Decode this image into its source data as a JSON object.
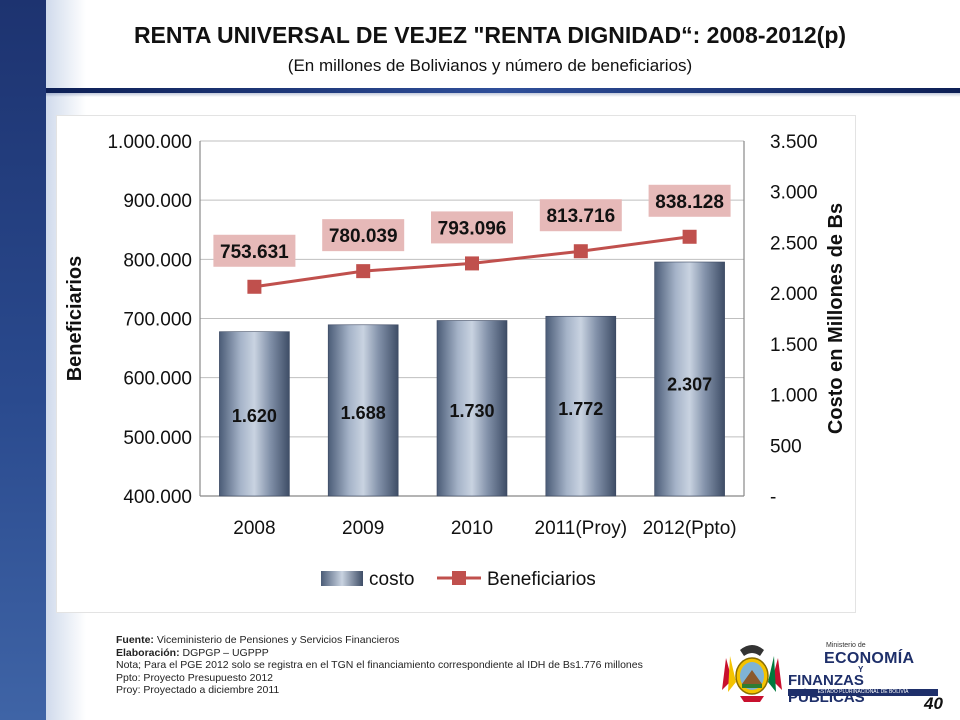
{
  "header": {
    "title": "RENTA UNIVERSAL DE VEJEZ \"RENTA DIGNIDAD“: 2008-2012(p)",
    "subtitle": "(En millones de Bolivianos y número de beneficiarios)"
  },
  "chart_data": {
    "type": "bar",
    "categories": [
      "2008",
      "2009",
      "2010",
      "2011(Proy)",
      "2012(Ppto)"
    ],
    "series": [
      {
        "name": "costo",
        "type": "bar",
        "axis": "right",
        "values": [
          1620,
          1688,
          1730,
          1772,
          2307
        ],
        "labels": [
          "1.620",
          "1.688",
          "1.730",
          "1.772",
          "2.307"
        ]
      },
      {
        "name": "Beneficiarios",
        "type": "line",
        "axis": "left",
        "values": [
          753631,
          780039,
          793096,
          813716,
          838128
        ],
        "labels": [
          "753.631",
          "780.039",
          "793.096",
          "813.716",
          "838.128"
        ]
      }
    ],
    "ylabel": "Beneficiarios",
    "ylim": [
      400000,
      1000000
    ],
    "y_ticks": [
      "400.000",
      "500.000",
      "600.000",
      "700.000",
      "800.000",
      "900.000",
      "1.000.000"
    ],
    "y2label": "Costo en Millones de Bs",
    "y2lim": [
      0,
      3500
    ],
    "y2_ticks": [
      "-",
      "500",
      "1.000",
      "1.500",
      "2.000",
      "2.500",
      "3.000",
      "3.500"
    ],
    "grid": "horizontal",
    "legend": "bottom",
    "colors": {
      "bar": "#7f8ea6",
      "line": "#c0504d",
      "label_box": "#e6b9b8"
    }
  },
  "notes": {
    "source_label": "Fuente:",
    "source": "Viceministerio de Pensiones y Servicios Financieros",
    "prepared_label": "Elaboración:",
    "prepared": "DGPGP – UGPPP",
    "note": "Nota; Para el PGE 2012 solo se registra en el TGN el financiamiento correspondiente al IDH de Bs1.776 millones",
    "ppto": "Ppto: Proyecto Presupuesto 2012",
    "proy": "Proy: Proyectado a diciembre 2011"
  },
  "logo": {
    "ministry_small": "Ministerio de",
    "ministry_eco": "ECONOMÍA",
    "ministry_y": "Y",
    "ministry_fin": "FINANZAS PÚBLICAS",
    "ministry_state": "ESTADO PLURINACIONAL DE BOLIVIA"
  },
  "page_number": "40",
  "colors": {
    "stripe": "#2a4a8e",
    "rule": "#1b2f6e"
  }
}
